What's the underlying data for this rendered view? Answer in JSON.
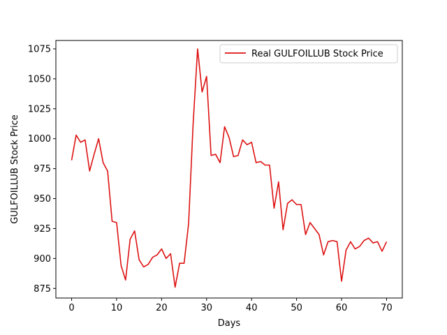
{
  "chart_data": {
    "type": "line",
    "xlabel": "Days",
    "ylabel": "GULFOILLUB Stock Price",
    "xlim": [
      -3.5,
      73.5
    ],
    "ylim": [
      867,
      1082
    ],
    "xticks": [
      0,
      10,
      20,
      30,
      40,
      50,
      60,
      70
    ],
    "yticks": [
      875,
      900,
      925,
      950,
      975,
      1000,
      1025,
      1050,
      1075
    ],
    "grid": false,
    "legend_position": "top-right",
    "series": [
      {
        "name": "Real GULFOILLUB Stock Price",
        "color": "#dd1111",
        "x": [
          0,
          1,
          2,
          3,
          4,
          5,
          6,
          7,
          8,
          9,
          10,
          11,
          12,
          13,
          14,
          15,
          16,
          17,
          18,
          19,
          20,
          21,
          22,
          23,
          24,
          25,
          26,
          27,
          28,
          29,
          30,
          31,
          32,
          33,
          34,
          35,
          36,
          37,
          38,
          39,
          40,
          41,
          42,
          43,
          44,
          45,
          46,
          47,
          48,
          49,
          50,
          51,
          52,
          53,
          54,
          55,
          56,
          57,
          58,
          59,
          60,
          61,
          62,
          63,
          64,
          65,
          66,
          67,
          68,
          69,
          70
        ],
        "y": [
          982,
          1003,
          997,
          999,
          973,
          987,
          1000,
          980,
          973,
          931,
          930,
          894,
          882,
          916,
          923,
          899,
          893,
          895,
          901,
          903,
          908,
          900,
          904,
          876,
          896,
          896,
          929,
          1012,
          1075,
          1039,
          1052,
          986,
          987,
          980,
          1010,
          1001,
          985,
          986,
          999,
          995,
          997,
          980,
          981,
          978,
          978,
          942,
          964,
          924,
          946,
          949,
          945,
          945,
          920,
          930,
          925,
          920,
          903,
          914,
          915,
          914,
          881,
          907,
          914,
          908,
          910,
          915,
          917,
          913,
          914,
          906,
          914
        ]
      }
    ]
  }
}
